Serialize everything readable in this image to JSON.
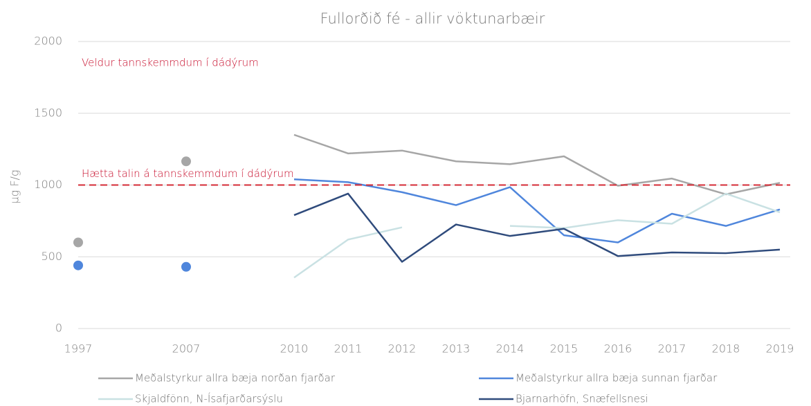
{
  "chart_data": {
    "type": "line",
    "title": "Fullorðið fé - allir vöktunarbæir",
    "y_label": "µg F/g",
    "categories": [
      "1997",
      null,
      "2007",
      null,
      "2010",
      "2011",
      "2012",
      "2013",
      "2014",
      "2015",
      "2016",
      "2017",
      "2018",
      "2019"
    ],
    "series": [
      {
        "name": "Meðalstyrkur allra bæja norðan fjarðar",
        "color": "#a6a6a6",
        "values": [
          600,
          null,
          1165,
          null,
          1350,
          1220,
          1240,
          1165,
          1145,
          1200,
          995,
          1045,
          935,
          1015
        ]
      },
      {
        "name": "Meðalstyrkur allra bæja sunnan fjarðar",
        "color": "#4f86dc",
        "values": [
          440,
          null,
          430,
          null,
          1040,
          1020,
          950,
          860,
          985,
          650,
          600,
          800,
          715,
          830
        ]
      },
      {
        "name": "Skjaldfönn, N-Ísafjarðarsýslu",
        "color": "#c9e1e3",
        "values": [
          null,
          null,
          null,
          null,
          355,
          620,
          705,
          null,
          715,
          700,
          755,
          730,
          940,
          810
        ]
      },
      {
        "name": "Bjarnarhöfn, Snæfellsnesi",
        "color": "#2f4b7c",
        "values": [
          null,
          null,
          null,
          null,
          790,
          940,
          465,
          725,
          645,
          695,
          505,
          530,
          525,
          550
        ]
      }
    ],
    "reference_line": {
      "value": 1000,
      "color": "#d42a34",
      "label": "Hætta talin á tannskemmdum í dádýrum"
    },
    "annotation": "Veldur tannskemmdum í dádýrum",
    "ylim": [
      0,
      2000
    ],
    "yticks": [
      0,
      500,
      1000,
      1500,
      2000
    ],
    "grid": true
  }
}
